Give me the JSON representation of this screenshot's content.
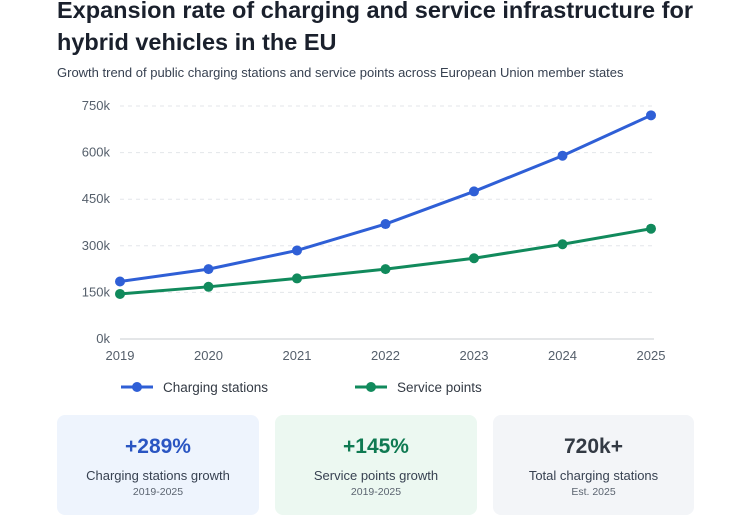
{
  "title": "Expansion rate of charging and service infrastructure for hybrid vehicles in the EU",
  "subtitle": "Growth trend of public charging stations and service points across European Union member states",
  "colors": {
    "charging": "#2f5fd6",
    "service": "#118a5c",
    "grid": "#e3e6ea",
    "axis": "#c9cdd2"
  },
  "chart_data": {
    "type": "line",
    "x": [
      "2019",
      "2020",
      "2021",
      "2022",
      "2023",
      "2024",
      "2025"
    ],
    "series": [
      {
        "name": "Charging stations",
        "values": [
          185000,
          225000,
          285000,
          370000,
          475000,
          590000,
          720000
        ]
      },
      {
        "name": "Service points",
        "values": [
          145000,
          168000,
          195000,
          225000,
          260000,
          305000,
          355000
        ]
      }
    ],
    "ylim": [
      0,
      750000
    ],
    "yticks": [
      0,
      150000,
      300000,
      450000,
      600000,
      750000
    ],
    "ytick_labels": [
      "0k",
      "150k",
      "300k",
      "450k",
      "600k",
      "750k"
    ],
    "xlabel": "",
    "ylabel": "",
    "grid": true,
    "legend": "bottom-left"
  },
  "cards": [
    {
      "value": "+289%",
      "label": "Charging stations growth",
      "sub": "2019-2025"
    },
    {
      "value": "+145%",
      "label": "Service points growth",
      "sub": "2019-2025"
    },
    {
      "value": "720k+",
      "label": "Total charging stations",
      "sub": "Est. 2025"
    }
  ]
}
